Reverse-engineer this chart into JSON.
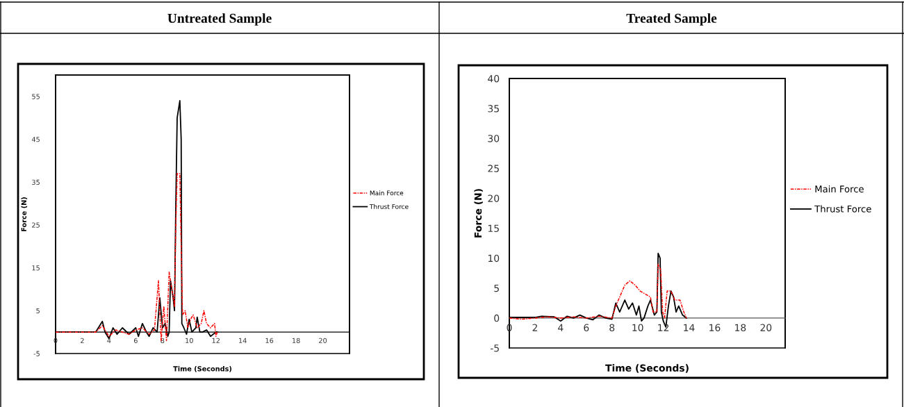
{
  "chart_data": [
    {
      "type": "line",
      "title": "Untreated Sample",
      "xlabel": "Time (Seconds)",
      "ylabel": "Force (N)",
      "xlim": [
        0,
        22
      ],
      "xticks": [
        0,
        2,
        4,
        6,
        8,
        10,
        12,
        14,
        16,
        18,
        20
      ],
      "ylim": [
        -5,
        60
      ],
      "yticks": [
        -5,
        5,
        15,
        25,
        35,
        45,
        55
      ],
      "grid": false,
      "legend": "right",
      "marker": "none",
      "series": [
        {
          "name": "Main Force",
          "color": "#ff0000",
          "line_style": "dashdot",
          "x": [
            0,
            1,
            2,
            3,
            3.5,
            4,
            4.5,
            5,
            5.5,
            6,
            6.5,
            7,
            7.4,
            7.7,
            7.9,
            8.1,
            8.3,
            8.5,
            8.7,
            8.9,
            9.0,
            9.1,
            9.3,
            9.4,
            9.5,
            9.7,
            9.9,
            10.1,
            10.3,
            10.6,
            10.9,
            11.1,
            11.3,
            11.6,
            11.9,
            12.0,
            12.1
          ],
          "values": [
            0,
            0,
            0,
            0,
            1.5,
            -1,
            0.5,
            0,
            -0.5,
            0.5,
            1,
            -0.5,
            0.5,
            12,
            -2,
            6,
            -2,
            14,
            10,
            6,
            25,
            37,
            37,
            20,
            4,
            5,
            1,
            3,
            4,
            1,
            2,
            5,
            2,
            1,
            2,
            -1,
            0
          ]
        },
        {
          "name": "Thrust Force",
          "color": "#000000",
          "line_style": "solid",
          "x": [
            0,
            1,
            2,
            3,
            3.5,
            3.7,
            4,
            4.3,
            4.6,
            5,
            5.5,
            6,
            6.2,
            6.5,
            6.8,
            7,
            7.3,
            7.6,
            7.8,
            8,
            8.2,
            8.4,
            8.5,
            8.6,
            8.8,
            8.9,
            9.0,
            9.1,
            9.2,
            9.3,
            9.4,
            9.45,
            9.6,
            9.8,
            10,
            10.2,
            10.5,
            10.6,
            10.8,
            11,
            11.3,
            11.6,
            12,
            12.1
          ],
          "values": [
            0,
            0,
            0,
            0,
            2.5,
            0,
            -1.5,
            1,
            -0.5,
            1,
            -0.5,
            1,
            -1,
            2,
            0,
            -1,
            1,
            0,
            8,
            1,
            2,
            -1,
            0,
            12,
            8,
            5,
            30,
            50,
            52,
            54,
            45,
            2,
            1,
            -0.5,
            3,
            0,
            1,
            3.5,
            0,
            0,
            0.5,
            -1,
            0,
            0
          ]
        }
      ]
    },
    {
      "type": "line",
      "title": "Treated Sample",
      "xlabel": "Time (Seconds)",
      "ylabel": "Force (N)",
      "xlim": [
        0,
        21.5
      ],
      "xticks": [
        0,
        2,
        4,
        6,
        8,
        10,
        12,
        14,
        16,
        18,
        20
      ],
      "ylim": [
        -5,
        40
      ],
      "yticks": [
        -5,
        0,
        5,
        10,
        15,
        20,
        25,
        30,
        35,
        40
      ],
      "grid": false,
      "legend": "right",
      "marker": "none",
      "series": [
        {
          "name": "Main Force",
          "color": "#ff0000",
          "line_style": "dashdot",
          "x": [
            0,
            1,
            2,
            3,
            4,
            5,
            6,
            7,
            8,
            8.3,
            8.7,
            9.0,
            9.4,
            9.8,
            10.2,
            10.6,
            11.0,
            11.2,
            11.5,
            11.6,
            11.8,
            11.95,
            12.1,
            12.3,
            12.6,
            12.9,
            13.3,
            13.6,
            13.8
          ],
          "values": [
            0,
            -0.2,
            0,
            0.2,
            0,
            0.2,
            0,
            0.3,
            0,
            2,
            4,
            5.5,
            6.2,
            5.5,
            4.5,
            4,
            3.5,
            1,
            1,
            9,
            8,
            1,
            0,
            4.5,
            4.5,
            3,
            3,
            1,
            0
          ]
        },
        {
          "name": "Thrust Force",
          "color": "#000000",
          "line_style": "solid",
          "x": [
            0,
            1,
            2,
            2.5,
            3.5,
            4,
            4.5,
            5,
            5.5,
            6,
            6.5,
            7,
            7.5,
            8,
            8.3,
            8.6,
            9,
            9.3,
            9.6,
            9.9,
            10.1,
            10.3,
            10.5,
            10.8,
            11.0,
            11.3,
            11.5,
            11.6,
            11.75,
            11.85,
            12.0,
            12.2,
            12.4,
            12.6,
            12.8,
            13.0,
            13.2,
            13.5,
            13.8
          ],
          "values": [
            0.1,
            0.1,
            0.1,
            0.3,
            0.2,
            -0.5,
            0.3,
            0,
            0.5,
            0,
            -0.3,
            0.5,
            0,
            -0.2,
            2.5,
            1,
            3,
            1.5,
            2.5,
            0.5,
            2,
            -0.5,
            0,
            2,
            3,
            0.5,
            1,
            10.8,
            10,
            1,
            -0.5,
            -1.5,
            2,
            4.5,
            3.5,
            1,
            2,
            0.5,
            0
          ]
        }
      ]
    }
  ]
}
